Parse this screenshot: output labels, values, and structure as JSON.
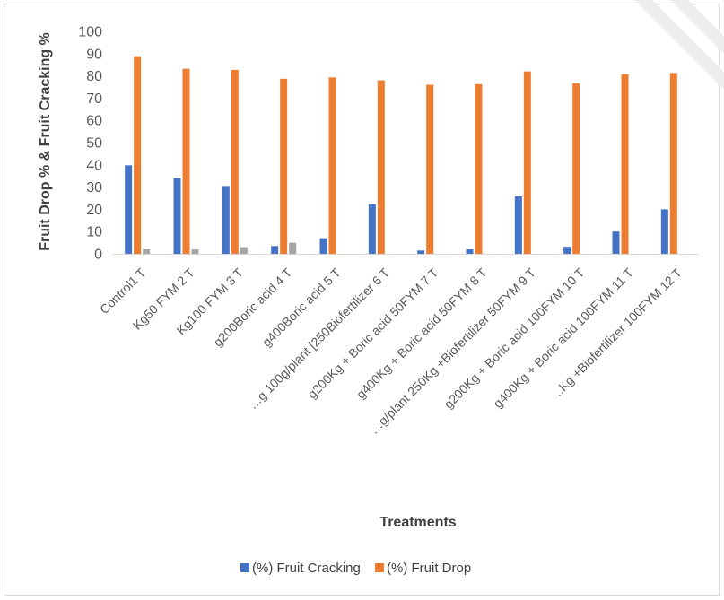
{
  "chart_data": {
    "type": "bar",
    "title": "",
    "xlabel": "Treatments",
    "ylabel": "Fruit Drop % & Fruit Cracking %",
    "ylim": [
      0,
      100
    ],
    "yticks": [
      0,
      10,
      20,
      30,
      40,
      50,
      60,
      70,
      80,
      90,
      100
    ],
    "grid": false,
    "legend_position": "bottom",
    "categories": [
      "Control1     T",
      "Kg50 FYM 2     T",
      "Kg100 FYM 3     T",
      "g200Boric acid 4     T",
      "g400Boric acid 5     T",
      "…g 100g/plant [250Biofertilizer 6     T",
      "g200Kg + Boric acid 50FYM 7     T",
      "g400Kg + Boric acid 50FYM 8     T",
      "…g/plant 250Kg +Biofertilizer 50FYM 9     T",
      "g200Kg + Boric acid 100FYM 10     T",
      "g400Kg + Boric acid 100FYM 11     T",
      "..Kg +Biofertilizer 100FYM 12     T"
    ],
    "series": [
      {
        "name": "(%) Fruit Cracking",
        "color": "#4472c4",
        "values": [
          39.8,
          34,
          30.5,
          3.5,
          7,
          22.3,
          1.5,
          2,
          25.8,
          3.2,
          10,
          20
        ]
      },
      {
        "name": "(%) Fruit Drop",
        "color": "#ed7d31",
        "values": [
          88.8,
          83.2,
          82.7,
          78.7,
          79.3,
          78,
          76,
          76.3,
          82,
          76.7,
          80.8,
          81.3
        ]
      },
      {
        "name": "",
        "color": "#a5a5a5",
        "values": [
          2,
          2,
          3,
          5,
          0,
          0,
          0,
          0,
          0,
          0,
          0,
          0
        ]
      }
    ],
    "legend": [
      {
        "label": "(%) Fruit Cracking",
        "color": "#4472c4"
      },
      {
        "label": "(%) Fruit Drop",
        "color": "#ed7d31"
      }
    ]
  }
}
